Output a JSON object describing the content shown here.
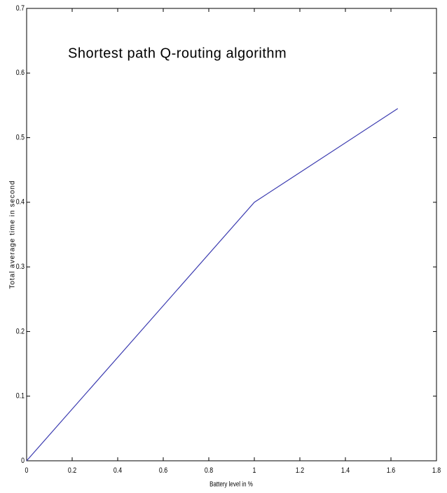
{
  "chart_data": {
    "type": "line",
    "title": "Shortest path Q-routing algorithm",
    "x_label": "Battery level in %",
    "y_label": "Total average time in second",
    "series": [
      {
        "color": "#3b3bb0",
        "x": [
          0,
          1,
          1.63
        ],
        "values": [
          0,
          0.4,
          0.545
        ]
      }
    ],
    "xlim": [
      0,
      1.8
    ],
    "xticks": [
      0,
      0.2,
      0.4,
      0.6,
      0.8,
      1,
      1.2,
      1.4,
      1.6,
      1.8
    ],
    "ylim": [
      0,
      0.7
    ],
    "yticks": [
      0,
      0.1,
      0.2,
      0.3,
      0.4,
      0.5,
      0.6,
      0.7
    ],
    "grid": false
  }
}
